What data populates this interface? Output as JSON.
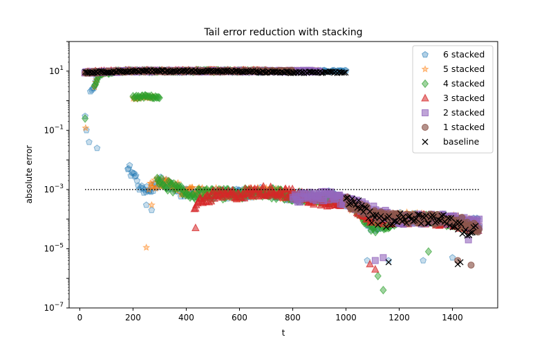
{
  "chart_data": {
    "type": "scatter",
    "title": "Tail error reduction with stacking",
    "xlabel": "t",
    "ylabel": "absolute error",
    "xlim": [
      -40,
      1570
    ],
    "ylim_log10": [
      -7,
      2
    ],
    "yscale": "log",
    "x_ticks": [
      0,
      200,
      400,
      600,
      800,
      1000,
      1200,
      1400
    ],
    "y_ticks": [
      {
        "value": 1e-07,
        "base": "10",
        "exp": "−7"
      },
      {
        "value": 1e-05,
        "base": "10",
        "exp": "−5"
      },
      {
        "value": 0.001,
        "base": "10",
        "exp": "−3"
      },
      {
        "value": 0.1,
        "base": "10",
        "exp": "−1"
      },
      {
        "value": 10,
        "base": "10",
        "exp": "1"
      }
    ],
    "legend_position": "top-right",
    "reference_line": {
      "y": 0.001,
      "x_start": 20,
      "x_end": 1500,
      "style": "dotted",
      "color": "#000000"
    },
    "series": [
      {
        "name": "6 stacked",
        "marker": "pentagon",
        "color": "#1f77b4",
        "opacity": 0.25,
        "start": 20,
        "end": 1500,
        "high_curve": [
          [
            40,
            2
          ],
          [
            55,
            3
          ],
          [
            65,
            6
          ],
          [
            80,
            9
          ],
          [
            150,
            10
          ],
          [
            300,
            10
          ],
          [
            600,
            10
          ],
          [
            850,
            10
          ],
          [
            1000,
            10
          ]
        ],
        "low_curve": [
          [
            180,
            0.005
          ],
          [
            200,
            0.004
          ],
          [
            220,
            0.0015
          ],
          [
            260,
            0.0008
          ],
          [
            300,
            0.002
          ],
          [
            400,
            0.0007
          ],
          [
            500,
            0.0007
          ],
          [
            600,
            0.0007
          ],
          [
            700,
            0.0009
          ],
          [
            800,
            0.0006
          ],
          [
            900,
            0.0005
          ],
          [
            950,
            0.0007
          ],
          [
            1000,
            0.0004
          ],
          [
            1050,
            0.0002
          ],
          [
            1100,
            5e-05
          ],
          [
            1200,
            0.00012
          ],
          [
            1300,
            0.0001
          ],
          [
            1350,
            0.00012
          ],
          [
            1420,
            6e-05
          ],
          [
            1500,
            8e-05
          ]
        ],
        "extra_points": [
          [
            20,
            0.3
          ],
          [
            25,
            0.1
          ],
          [
            35,
            0.04
          ],
          [
            65,
            0.025
          ],
          [
            1080,
            4e-06
          ],
          [
            1160,
            4e-06
          ],
          [
            1290,
            4e-06
          ],
          [
            1400,
            5e-06
          ],
          [
            250,
            0.0003
          ],
          [
            270,
            0.0002
          ]
        ]
      },
      {
        "name": "5 stacked",
        "marker": "star",
        "color": "#ff7f0e",
        "opacity": 0.35,
        "start": 20,
        "end": 1500,
        "high_curve": [
          [
            55,
            3
          ],
          [
            70,
            8
          ],
          [
            150,
            10
          ],
          [
            400,
            10
          ],
          [
            700,
            10
          ],
          [
            900,
            10
          ]
        ],
        "mid_curve": [
          [
            200,
            1.2
          ],
          [
            240,
            1.3
          ],
          [
            280,
            1.3
          ]
        ],
        "low_curve": [
          [
            260,
            0.0012
          ],
          [
            300,
            0.0018
          ],
          [
            350,
            0.0015
          ],
          [
            400,
            0.0008
          ],
          [
            500,
            0.0008
          ],
          [
            600,
            0.0007
          ],
          [
            700,
            0.0009
          ],
          [
            800,
            0.0006
          ],
          [
            900,
            0.0005
          ],
          [
            1000,
            0.0004
          ],
          [
            1100,
            8e-05
          ],
          [
            1200,
            0.00015
          ],
          [
            1300,
            0.0001
          ],
          [
            1400,
            0.0001
          ],
          [
            1500,
            6e-05
          ]
        ],
        "extra_points": [
          [
            22,
            0.12
          ],
          [
            250,
            1.1e-05
          ],
          [
            270,
            0.0003
          ]
        ]
      },
      {
        "name": "4 stacked",
        "marker": "diamond",
        "color": "#2ca02c",
        "opacity": 0.45,
        "start": 20,
        "end": 1500,
        "high_curve": [
          [
            55,
            3
          ],
          [
            75,
            8
          ],
          [
            150,
            10
          ],
          [
            400,
            10
          ],
          [
            700,
            10
          ]
        ],
        "mid_curve": [
          [
            200,
            1.3
          ],
          [
            250,
            1.4
          ],
          [
            300,
            1.3
          ]
        ],
        "low_curve": [
          [
            290,
            0.0018
          ],
          [
            350,
            0.0012
          ],
          [
            400,
            0.0007
          ],
          [
            500,
            0.0007
          ],
          [
            600,
            0.0007
          ],
          [
            700,
            0.0008
          ],
          [
            800,
            0.0006
          ],
          [
            900,
            0.0005
          ],
          [
            1000,
            0.0004
          ],
          [
            1100,
            5e-05
          ],
          [
            1200,
            0.0001
          ],
          [
            1300,
            0.0001
          ],
          [
            1400,
            8e-05
          ],
          [
            1500,
            5e-05
          ]
        ],
        "extra_points": [
          [
            20,
            0.25
          ],
          [
            1120,
            1.2e-06
          ],
          [
            1140,
            4e-07
          ],
          [
            1310,
            8e-06
          ]
        ]
      },
      {
        "name": "3 stacked",
        "marker": "triangle",
        "color": "#d62728",
        "opacity": 0.55,
        "start": 20,
        "end": 1500,
        "high_curve": [
          [
            20,
            9
          ],
          [
            150,
            10
          ],
          [
            450,
            10
          ],
          [
            700,
            10
          ]
        ],
        "low_curve": [
          [
            430,
            0.0003
          ],
          [
            500,
            0.0006
          ],
          [
            600,
            0.0007
          ],
          [
            700,
            0.0009
          ],
          [
            800,
            0.0007
          ],
          [
            900,
            0.0004
          ],
          [
            1000,
            0.0004
          ],
          [
            1100,
            0.0001
          ],
          [
            1200,
            0.0001
          ],
          [
            1300,
            0.0001
          ],
          [
            1400,
            8e-05
          ],
          [
            1500,
            5e-05
          ]
        ],
        "extra_points": [
          [
            435,
            5e-05
          ],
          [
            1090,
            3e-06
          ],
          [
            1110,
            2e-06
          ]
        ]
      },
      {
        "name": "2 stacked",
        "marker": "square",
        "color": "#9467bd",
        "opacity": 0.6,
        "start": 20,
        "end": 1500,
        "high_curve": [
          [
            20,
            9
          ],
          [
            200,
            10
          ],
          [
            500,
            10
          ],
          [
            900,
            10
          ]
        ],
        "low_curve": [
          [
            800,
            0.0005
          ],
          [
            900,
            0.0006
          ],
          [
            950,
            0.0006
          ],
          [
            1000,
            0.0004
          ],
          [
            1100,
            0.0002
          ],
          [
            1200,
            0.0001
          ],
          [
            1300,
            0.0001
          ],
          [
            1400,
            0.0001
          ],
          [
            1500,
            6e-05
          ]
        ],
        "extra_points": [
          [
            1110,
            4e-06
          ],
          [
            1140,
            5e-06
          ],
          [
            1460,
            2e-05
          ],
          [
            1500,
            0.0001
          ]
        ]
      },
      {
        "name": "1 stacked",
        "marker": "circle",
        "color": "#8c564b",
        "opacity": 0.65,
        "start": 20,
        "end": 1500,
        "high_curve": [
          [
            20,
            9
          ],
          [
            200,
            10
          ],
          [
            500,
            10
          ],
          [
            800,
            10
          ]
        ],
        "low_curve": [
          [
            1000,
            0.0004
          ],
          [
            1100,
            0.00015
          ],
          [
            1200,
            0.0001
          ],
          [
            1300,
            0.0001
          ],
          [
            1400,
            0.0001
          ],
          [
            1500,
            5e-05
          ]
        ],
        "extra_points": [
          [
            1470,
            2.8e-06
          ],
          [
            1420,
            4e-06
          ]
        ]
      },
      {
        "name": "baseline",
        "marker": "x",
        "color": "#000000",
        "opacity": 1,
        "start": 20,
        "end": 1500,
        "high_curve": [
          [
            20,
            9
          ],
          [
            200,
            10
          ],
          [
            500,
            10
          ],
          [
            800,
            9
          ],
          [
            1000,
            9
          ]
        ],
        "low_curve": [
          [
            1000,
            0.0005
          ],
          [
            1050,
            0.0003
          ],
          [
            1100,
            0.0001
          ],
          [
            1150,
            8e-05
          ],
          [
            1200,
            0.00012
          ],
          [
            1250,
            0.0001
          ],
          [
            1300,
            0.0001
          ],
          [
            1350,
            0.00012
          ],
          [
            1400,
            8e-05
          ],
          [
            1450,
            4e-05
          ],
          [
            1490,
            5e-05
          ]
        ],
        "extra_points": [
          [
            1160,
            3.5e-06
          ],
          [
            1420,
            3e-06
          ],
          [
            1430,
            3.5e-06
          ]
        ]
      }
    ]
  }
}
